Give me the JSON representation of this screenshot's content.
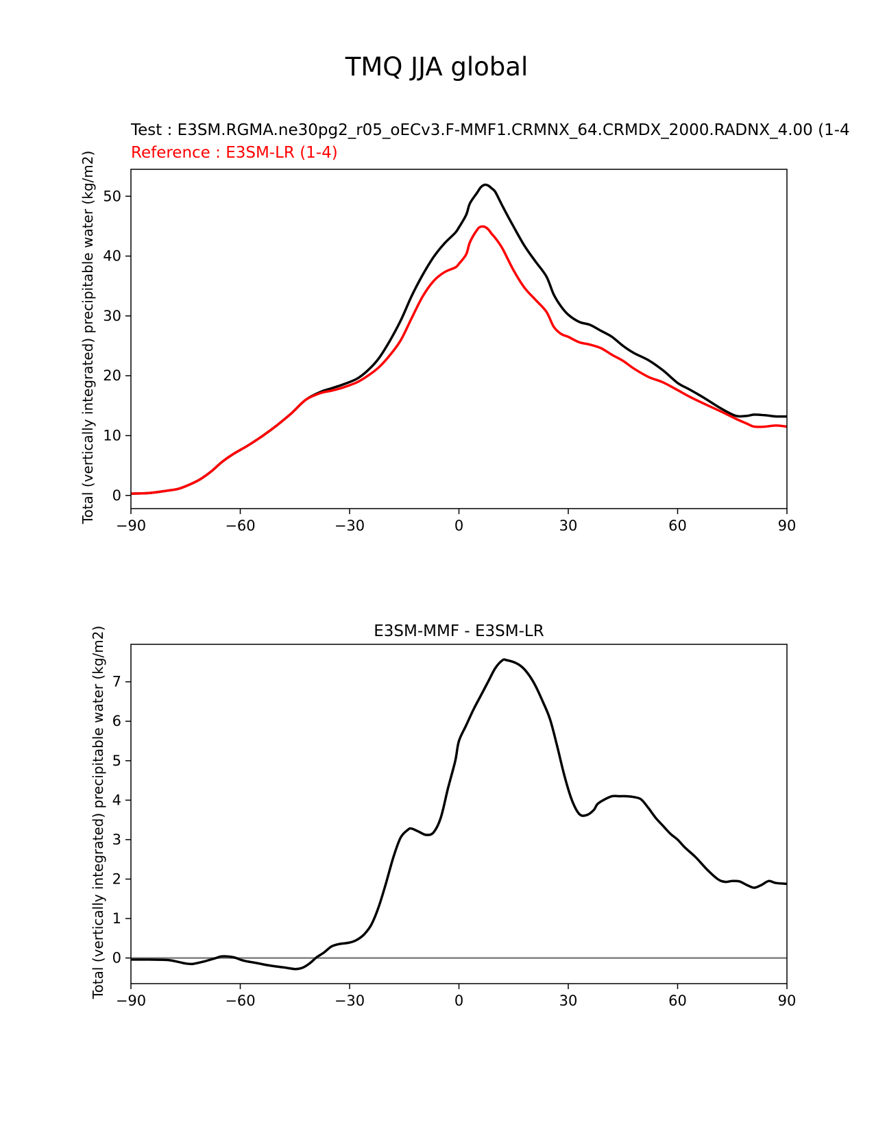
{
  "figure": {
    "title": "TMQ JJA global"
  },
  "chart_data": [
    {
      "type": "line",
      "test_label": "Test : E3SM.RGMA.ne30pg2_r05_oECv3.F-MMF1.CRMNX_64.CRMDX_2000.RADNX_4.00 (1-4",
      "reference_label": "Reference : E3SM-LR (1-4)",
      "xlabel": "",
      "ylabel": "Total (vertically integrated) precipitable water (kg/m2)",
      "xlim": [
        -90,
        90
      ],
      "ylim": [
        -2.2,
        54.5
      ],
      "xticks": [
        -90,
        -60,
        -30,
        0,
        30,
        60,
        90
      ],
      "xtick_labels": [
        "−90",
        "−60",
        "−30",
        "0",
        "30",
        "60",
        "90"
      ],
      "yticks": [
        0,
        10,
        20,
        30,
        40,
        50
      ],
      "ytick_labels": [
        "0",
        "10",
        "20",
        "30",
        "40",
        "50"
      ],
      "series": [
        {
          "name": "Test",
          "color": "#000000",
          "x": [
            -90,
            -85,
            -80,
            -77,
            -74,
            -71,
            -68,
            -65,
            -62,
            -58,
            -54,
            -50,
            -46,
            -42,
            -38,
            -35,
            -32,
            -28,
            -25,
            -22,
            -19,
            -16,
            -13,
            -10,
            -7,
            -4,
            -1,
            0,
            2,
            3,
            5,
            6,
            7,
            8,
            9,
            10,
            12,
            15,
            18,
            21,
            24,
            26,
            28,
            30,
            33,
            36,
            39,
            42,
            45,
            48,
            52,
            56,
            60,
            63,
            67,
            72,
            76,
            79,
            81,
            84,
            87,
            90
          ],
          "values": [
            0.3,
            0.4,
            0.8,
            1.1,
            1.8,
            2.7,
            4.0,
            5.6,
            6.9,
            8.3,
            9.9,
            11.7,
            13.7,
            16.0,
            17.3,
            17.9,
            18.5,
            19.5,
            20.9,
            22.9,
            25.8,
            29.2,
            33.3,
            36.8,
            39.8,
            42.1,
            43.9,
            44.8,
            46.9,
            48.8,
            50.6,
            51.5,
            51.9,
            51.8,
            51.3,
            50.7,
            48.3,
            44.9,
            41.7,
            39.1,
            36.6,
            33.6,
            31.6,
            30.2,
            29.0,
            28.5,
            27.5,
            26.5,
            25.0,
            23.8,
            22.6,
            20.9,
            18.8,
            17.8,
            16.4,
            14.5,
            13.3,
            13.3,
            13.5,
            13.4,
            13.2,
            13.2
          ]
        },
        {
          "name": "Reference",
          "color": "#ff0000",
          "x": [
            -90,
            -85,
            -80,
            -77,
            -74,
            -71,
            -68,
            -65,
            -62,
            -58,
            -54,
            -50,
            -46,
            -42,
            -38,
            -35,
            -32,
            -28,
            -25,
            -22,
            -19,
            -16,
            -13,
            -10,
            -7,
            -4,
            -1,
            0,
            2,
            3,
            5,
            6,
            7,
            8,
            9,
            10,
            12,
            15,
            18,
            21,
            24,
            26,
            28,
            30,
            33,
            36,
            39,
            42,
            45,
            48,
            52,
            56,
            60,
            63,
            67,
            72,
            76,
            79,
            81,
            84,
            87,
            90
          ],
          "values": [
            0.3,
            0.4,
            0.8,
            1.1,
            1.8,
            2.7,
            4.0,
            5.6,
            6.9,
            8.3,
            9.9,
            11.7,
            13.7,
            16.0,
            17.1,
            17.5,
            18.0,
            18.9,
            20.0,
            21.4,
            23.4,
            25.9,
            29.6,
            33.2,
            35.8,
            37.3,
            38.1,
            38.7,
            40.3,
            42.3,
            44.4,
            44.9,
            44.9,
            44.5,
            43.7,
            43.0,
            41.2,
            37.6,
            34.7,
            32.7,
            30.7,
            28.2,
            27.0,
            26.5,
            25.6,
            25.2,
            24.6,
            23.5,
            22.5,
            21.2,
            19.8,
            18.9,
            17.6,
            16.6,
            15.4,
            14.0,
            12.8,
            12.0,
            11.5,
            11.5,
            11.7,
            11.5
          ]
        }
      ]
    },
    {
      "type": "line",
      "title": "E3SM-MMF - E3SM-LR",
      "xlabel": "",
      "ylabel": "Total (vertically integrated) precipitable water (kg/m2)",
      "xlim": [
        -90,
        90
      ],
      "ylim": [
        -0.65,
        7.95
      ],
      "xticks": [
        -90,
        -60,
        -30,
        0,
        30,
        60,
        90
      ],
      "xtick_labels": [
        "−90",
        "−60",
        "−30",
        "0",
        "30",
        "60",
        "90"
      ],
      "yticks": [
        0,
        1,
        2,
        3,
        4,
        5,
        6,
        7
      ],
      "ytick_labels": [
        "0",
        "1",
        "2",
        "3",
        "4",
        "5",
        "6",
        "7"
      ],
      "zero_line": {
        "value": 0,
        "color": "#808080"
      },
      "series": [
        {
          "name": "E3SM-MMF - E3SM-LR",
          "color": "#000000",
          "x": [
            -90,
            -85,
            -80,
            -77,
            -75,
            -73,
            -70,
            -67,
            -65,
            -62,
            -59,
            -56,
            -52,
            -48,
            -45,
            -43,
            -41,
            -39,
            -37,
            -35,
            -33,
            -30,
            -28,
            -26,
            -24,
            -22,
            -20,
            -18,
            -16,
            -14,
            -13,
            -11,
            -9,
            -7,
            -5,
            -3,
            -1,
            0,
            2,
            4,
            6,
            8,
            10,
            12,
            13,
            15,
            17,
            19,
            21,
            23,
            25,
            27,
            29,
            31,
            33,
            35,
            37,
            38,
            40,
            42,
            44,
            46,
            48,
            50,
            52,
            54,
            56,
            58,
            60,
            62,
            65,
            68,
            71,
            73,
            75,
            77,
            79,
            81,
            83,
            85,
            87,
            90
          ],
          "values": [
            -0.04,
            -0.04,
            -0.05,
            -0.1,
            -0.14,
            -0.15,
            -0.09,
            -0.01,
            0.04,
            0.02,
            -0.07,
            -0.12,
            -0.19,
            -0.24,
            -0.28,
            -0.25,
            -0.14,
            0.02,
            0.14,
            0.29,
            0.35,
            0.39,
            0.46,
            0.6,
            0.85,
            1.3,
            1.9,
            2.55,
            3.05,
            3.25,
            3.28,
            3.2,
            3.12,
            3.18,
            3.55,
            4.3,
            5.0,
            5.5,
            5.9,
            6.3,
            6.65,
            7.0,
            7.35,
            7.55,
            7.55,
            7.5,
            7.4,
            7.2,
            6.9,
            6.5,
            6.05,
            5.35,
            4.6,
            4.0,
            3.65,
            3.62,
            3.75,
            3.9,
            4.02,
            4.1,
            4.1,
            4.1,
            4.08,
            4.02,
            3.8,
            3.55,
            3.35,
            3.15,
            3.0,
            2.8,
            2.55,
            2.25,
            2.0,
            1.93,
            1.95,
            1.94,
            1.85,
            1.78,
            1.85,
            1.95,
            1.9,
            1.88
          ]
        }
      ]
    }
  ]
}
